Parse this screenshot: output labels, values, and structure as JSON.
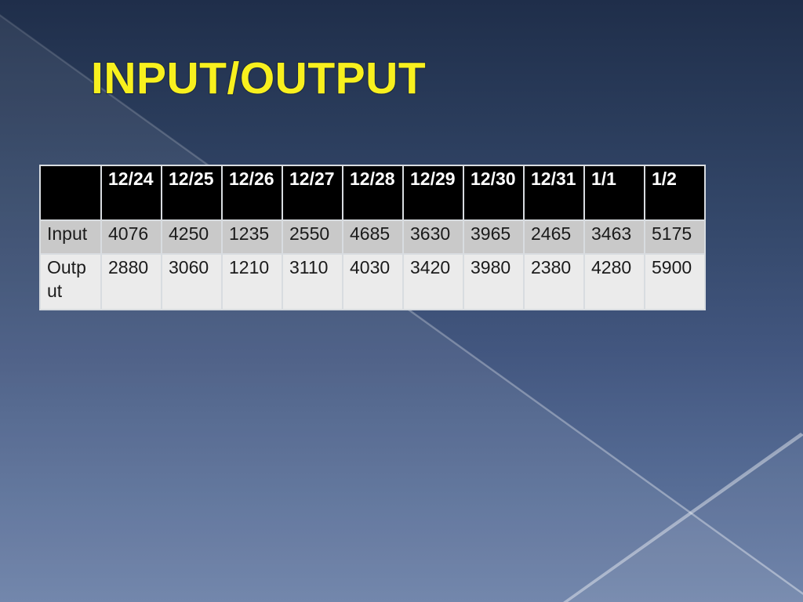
{
  "slide": {
    "title": "INPUT/OUTPUT"
  },
  "table": {
    "corner_label": "",
    "columns": [
      "12/24",
      "12/25",
      "12/26",
      "12/27",
      "12/28",
      "12/29",
      "12/30",
      "12/31",
      "1/1",
      "1/2"
    ],
    "rows": [
      {
        "label": "Input",
        "values": [
          "4076",
          "4250",
          "1235",
          "2550",
          "4685",
          "3630",
          "3965",
          "2465",
          "3463",
          "5175"
        ]
      },
      {
        "label": "Output",
        "values": [
          "2880",
          "3060",
          "1210",
          "3110",
          "4030",
          "3420",
          "3980",
          "2380",
          "4280",
          "5900"
        ]
      }
    ]
  },
  "chart_data": {
    "type": "table",
    "title": "INPUT/OUTPUT",
    "categories": [
      "12/24",
      "12/25",
      "12/26",
      "12/27",
      "12/28",
      "12/29",
      "12/30",
      "12/31",
      "1/1",
      "1/2"
    ],
    "series": [
      {
        "name": "Input",
        "values": [
          4076,
          4250,
          1235,
          2550,
          4685,
          3630,
          3965,
          2465,
          3463,
          5175
        ]
      },
      {
        "name": "Output",
        "values": [
          2880,
          3060,
          1210,
          3110,
          4030,
          3420,
          3980,
          2380,
          4280,
          5900
        ]
      }
    ]
  },
  "colors": {
    "header_bg": "#000000",
    "header_text": "#ffffff",
    "row_input_bg": "#c9c9c9",
    "row_output_bg": "#ebebeb",
    "cell_text": "#1b1b1b",
    "title_text": "#f8f01e",
    "title_outline": "#1b2a45",
    "bg_top": "#1f2e4a",
    "bg_bottom": "#697ea6",
    "table_border": "#d8dce0"
  }
}
